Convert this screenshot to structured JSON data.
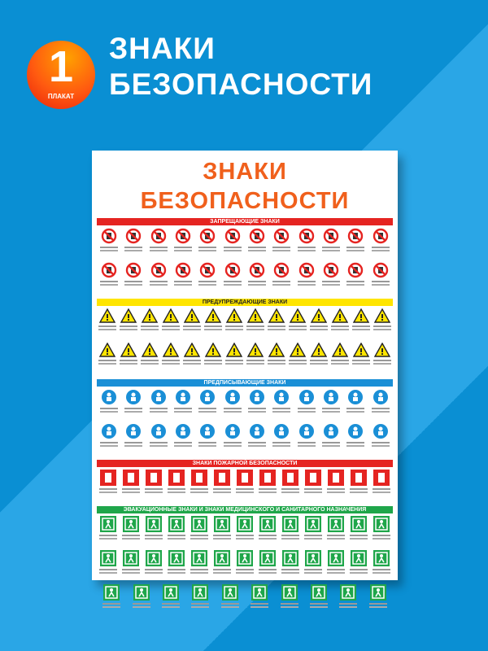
{
  "banner": {
    "number": "1",
    "badge_label": "ПЛАКАТ",
    "title_line1": "ЗНАКИ",
    "title_line2": "БЕЗОПАСНОСТИ"
  },
  "poster": {
    "title": "ЗНАКИ БЕЗОПАСНОСТИ",
    "sections": [
      {
        "title": "ЗАПРЕЩАЮЩИЕ ЗНАКИ",
        "type": "prohibition",
        "color": "#e52421",
        "rows": [
          12,
          12
        ]
      },
      {
        "title": "ПРЕДУПРЕЖДАЮЩИЕ ЗНАКИ",
        "type": "warning",
        "color": "#ffe500",
        "rows": [
          14,
          14
        ]
      },
      {
        "title": "ПРЕДПИСЫВАЮЩИЕ ЗНАКИ",
        "type": "mandatory",
        "color": "#1a8fd6",
        "rows": [
          12,
          12
        ]
      },
      {
        "title": "ЗНАКИ ПОЖАРНОЙ БЕЗОПАСНОСТИ",
        "type": "fire",
        "color": "#e52421",
        "rows": [
          13
        ]
      },
      {
        "title": "ЭВАКУАЦИОННЫЕ ЗНАКИ И ЗНАКИ МЕДИЦИНСКОГО И САНИТАРНОГО НАЗНАЧЕНИЯ",
        "type": "evacuation",
        "color": "#1fa64a",
        "rows": [
          13,
          13,
          10
        ]
      }
    ]
  }
}
